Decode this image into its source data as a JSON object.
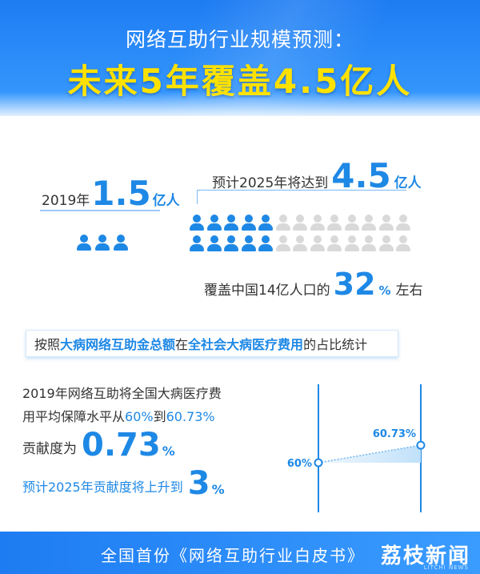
{
  "header": {
    "subtitle": "网络互助行业规模预测：",
    "title": "未来5年覆盖4.5亿人"
  },
  "section_scale": {
    "year_2019_prefix": "2019年",
    "year_2019_value": "1.5",
    "year_2019_unit": "亿人",
    "forecast_prefix": "预计2025年将达到",
    "forecast_value": "4.5",
    "forecast_unit": "亿人",
    "cover_prefix": "覆盖中国14亿人口的",
    "cover_value": "32",
    "cover_pct": "%",
    "cover_suffix": "左右",
    "icon_2019_count": 3,
    "icon_grid_blue": 10,
    "icon_grid_total": 26
  },
  "banner": {
    "p1": "按照",
    "hl1": "大病网络互助金总额",
    "p2": "在",
    "hl2": "全社会大病医疗费用",
    "p3": "的占比统计"
  },
  "section_ratio": {
    "line1": "2019年网络互助将全国大病医疗费",
    "line2_prefix": "用平均保障水平从",
    "line2_from": "60%",
    "line2_mid": "到",
    "line2_to": "60.73%",
    "line3_prefix": "贡献度为",
    "line3_value": "0.73",
    "line3_pct": "%",
    "line4_prefix": "预计2025年贡献度将上升到",
    "line4_value": "3",
    "line4_pct": "%"
  },
  "mini_chart": {
    "start_label": "60%",
    "end_label": "60.73%",
    "start_value": 60,
    "end_value": 60.73
  },
  "footer": {
    "text": "全国首份《网络互助行业白皮书》",
    "brand": "荔枝新闻",
    "brand_sub": "LITCHI NEWS"
  },
  "colors": {
    "accent": "#1e88e5",
    "title_yellow": "#ffe100",
    "grey_person": "#d9d9d9"
  }
}
